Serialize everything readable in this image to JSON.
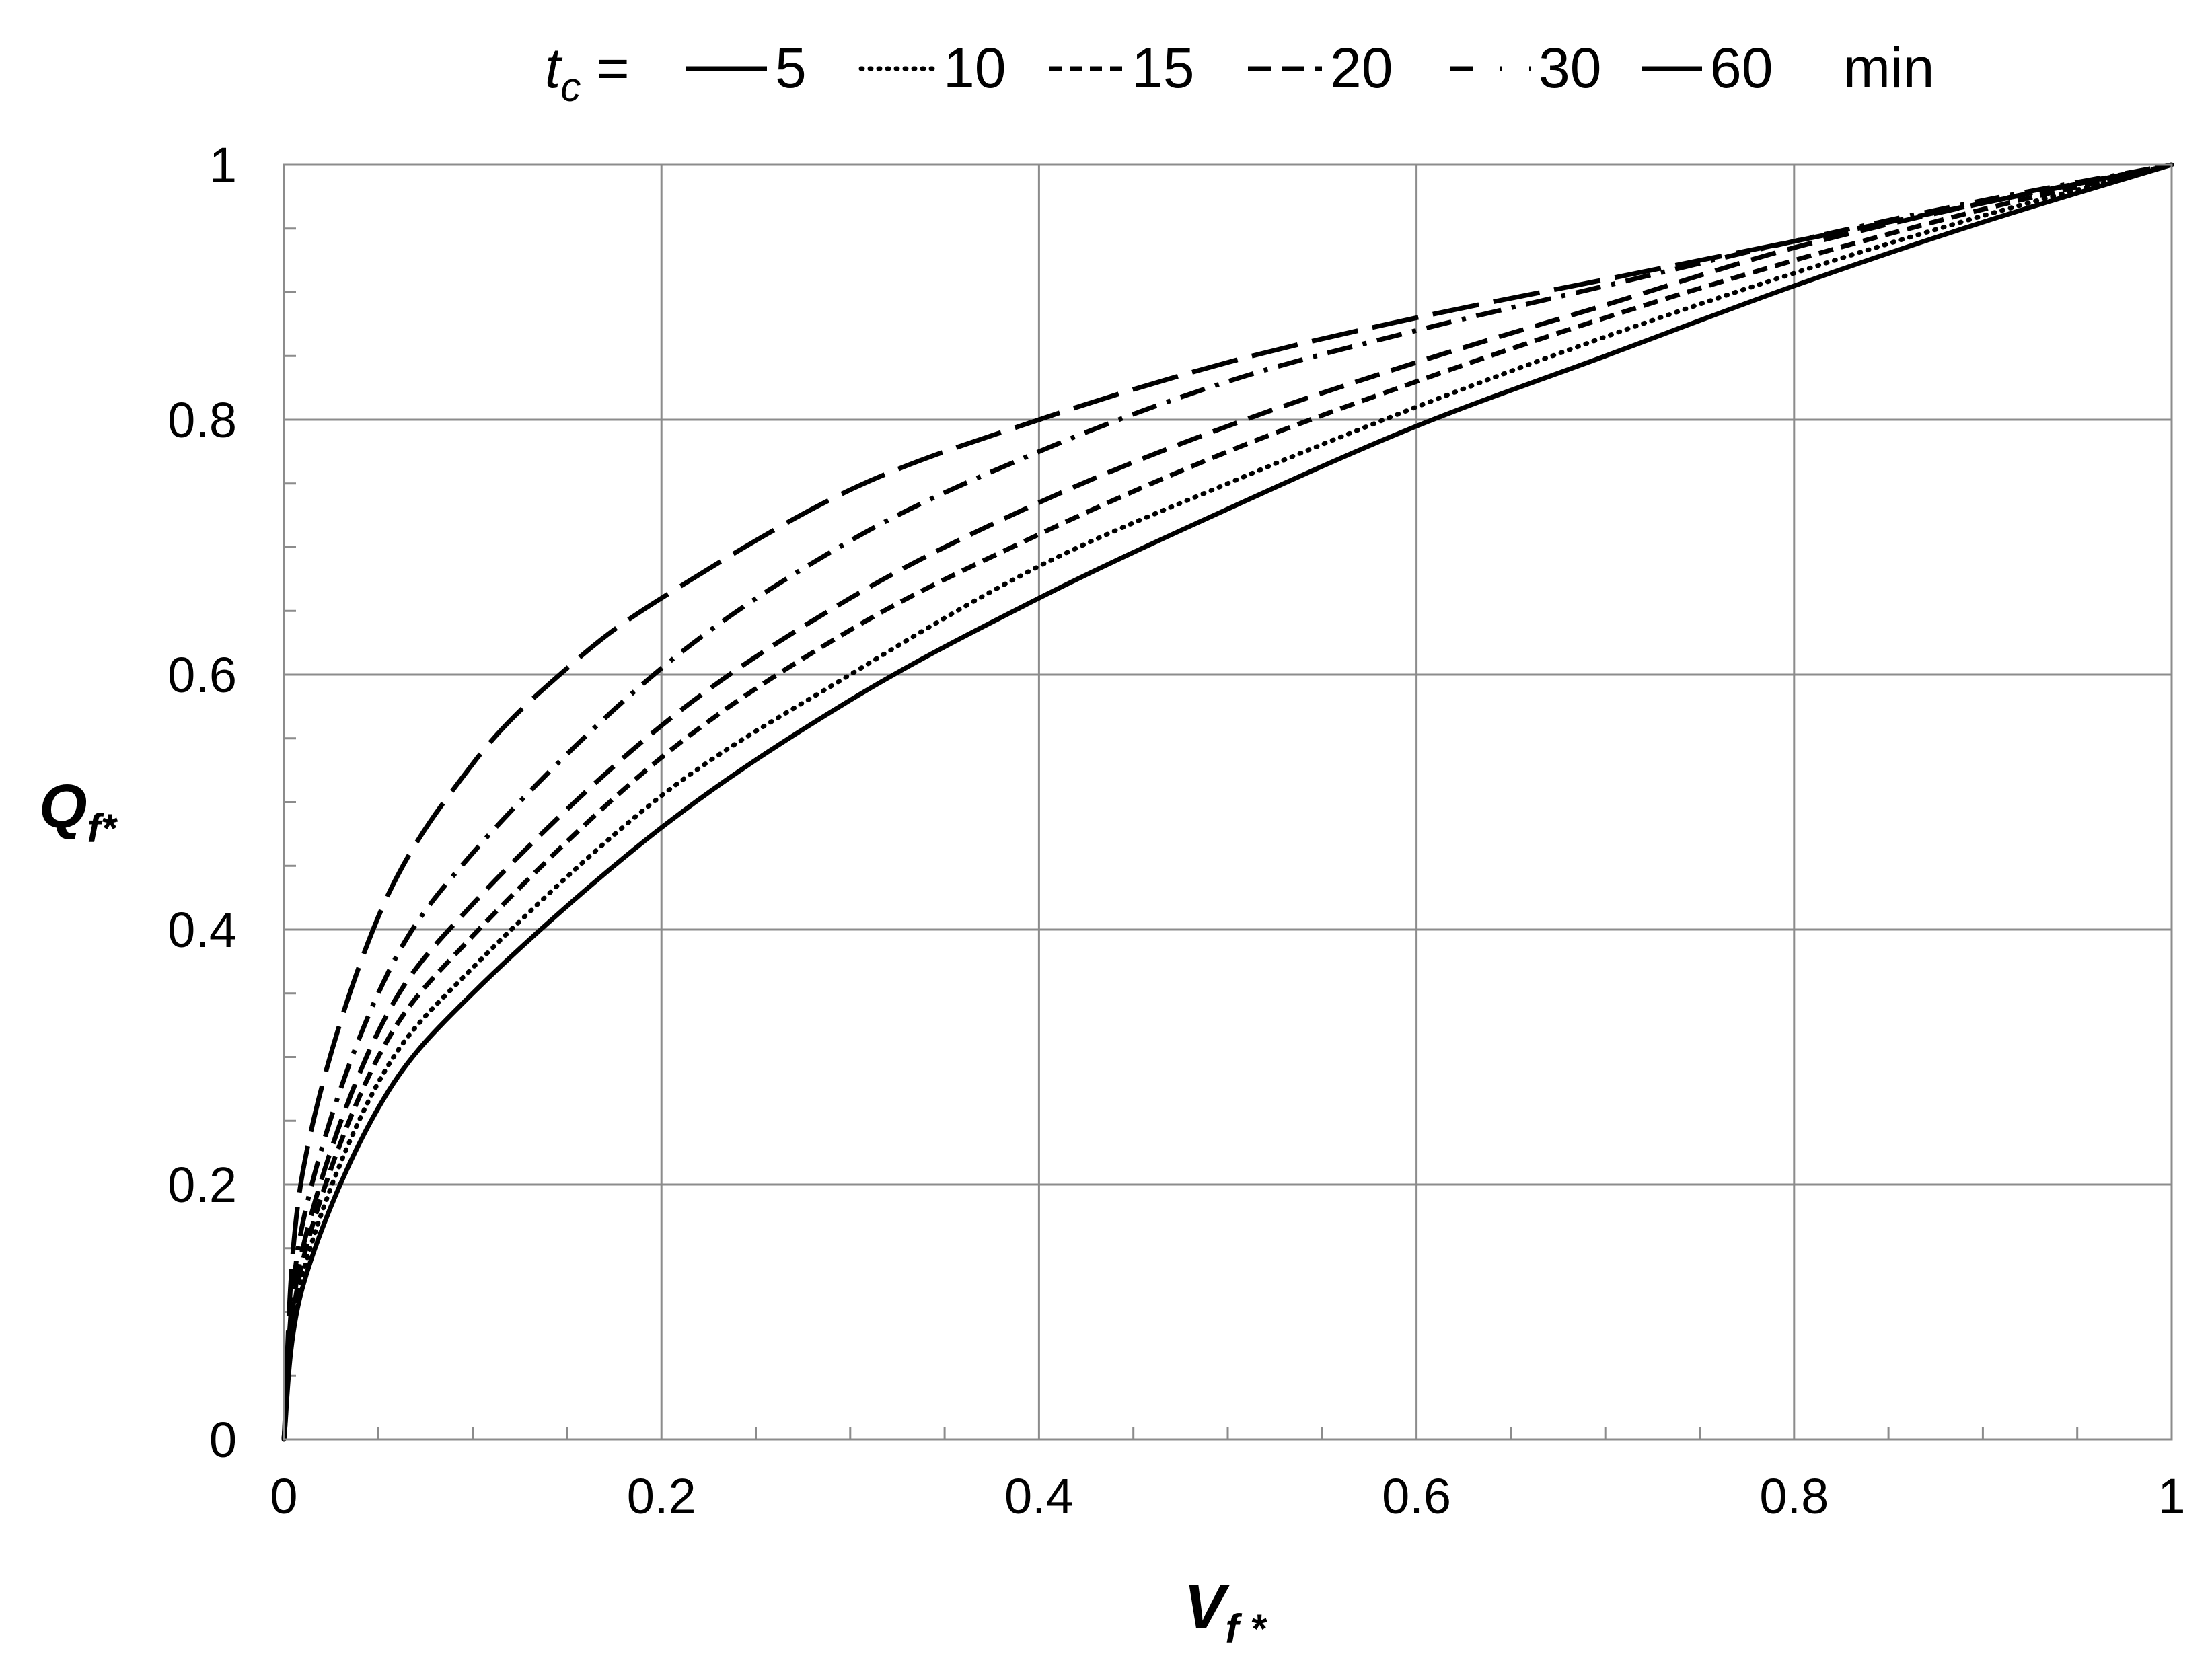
{
  "chart_data": {
    "type": "line",
    "xlabel": {
      "main": "V",
      "sub": "f *"
    },
    "ylabel": {
      "main": "Q",
      "sub": "f*"
    },
    "xlim": [
      0,
      1
    ],
    "ylim": [
      0,
      1
    ],
    "x_ticks": [
      "0",
      "0.2",
      "0.4",
      "0.6",
      "0.8",
      "1"
    ],
    "y_ticks": [
      "0",
      "0.2",
      "0.4",
      "0.6",
      "0.8",
      "1"
    ],
    "grid": true,
    "legend": {
      "placement": "top",
      "prefix_main": "t",
      "prefix_sub": "c",
      "prefix_eq": " =",
      "unit": "min"
    },
    "series": [
      {
        "name": "5",
        "dash": "solid",
        "x": [
          0,
          0.01,
          0.05,
          0.1,
          0.2,
          0.3,
          0.4,
          0.5,
          0.6,
          0.7,
          0.8,
          0.9,
          1.0
        ],
        "y": [
          0,
          0.12,
          0.26,
          0.35,
          0.48,
          0.58,
          0.66,
          0.73,
          0.795,
          0.85,
          0.905,
          0.955,
          1.0
        ]
      },
      {
        "name": "10",
        "dash": "dotted",
        "x": [
          0,
          0.01,
          0.05,
          0.1,
          0.2,
          0.3,
          0.4,
          0.5,
          0.6,
          0.7,
          0.8,
          0.9,
          1.0
        ],
        "y": [
          0,
          0.13,
          0.28,
          0.37,
          0.505,
          0.6,
          0.685,
          0.75,
          0.81,
          0.865,
          0.915,
          0.96,
          1.0
        ]
      },
      {
        "name": "15",
        "dash": "short",
        "x": [
          0,
          0.01,
          0.05,
          0.1,
          0.2,
          0.3,
          0.4,
          0.5,
          0.6,
          0.7,
          0.8,
          0.9,
          1.0
        ],
        "y": [
          0,
          0.14,
          0.3,
          0.395,
          0.535,
          0.635,
          0.71,
          0.775,
          0.83,
          0.88,
          0.925,
          0.965,
          1.0
        ]
      },
      {
        "name": "20",
        "dash": "medium",
        "x": [
          0,
          0.01,
          0.05,
          0.1,
          0.2,
          0.3,
          0.4,
          0.5,
          0.6,
          0.7,
          0.8,
          0.9,
          1.0
        ],
        "y": [
          0,
          0.15,
          0.32,
          0.42,
          0.56,
          0.66,
          0.735,
          0.795,
          0.845,
          0.89,
          0.935,
          0.97,
          1.0
        ]
      },
      {
        "name": "30",
        "dash": "dashdot",
        "x": [
          0,
          0.01,
          0.05,
          0.1,
          0.2,
          0.3,
          0.4,
          0.5,
          0.6,
          0.7,
          0.8,
          0.9,
          1.0
        ],
        "y": [
          0,
          0.17,
          0.35,
          0.46,
          0.605,
          0.705,
          0.775,
          0.83,
          0.87,
          0.905,
          0.94,
          0.972,
          1.0
        ]
      },
      {
        "name": "60",
        "dash": "long",
        "x": [
          0,
          0.01,
          0.05,
          0.1,
          0.15,
          0.2,
          0.3,
          0.4,
          0.5,
          0.6,
          0.7,
          0.8,
          0.9,
          1.0
        ],
        "y": [
          0,
          0.21,
          0.41,
          0.53,
          0.605,
          0.66,
          0.745,
          0.8,
          0.845,
          0.88,
          0.91,
          0.94,
          0.97,
          1.0
        ]
      }
    ]
  }
}
